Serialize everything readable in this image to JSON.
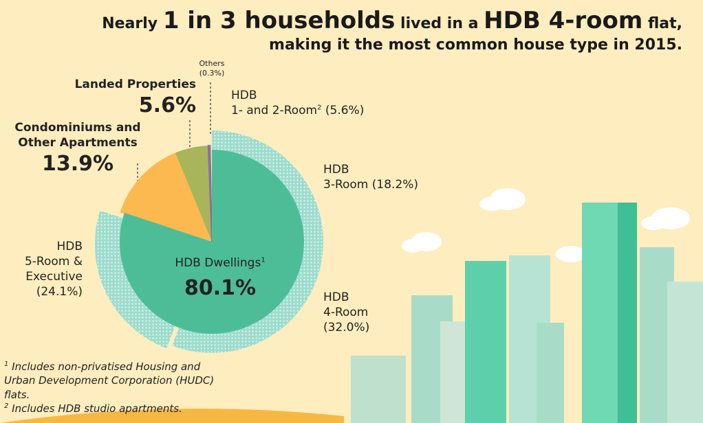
{
  "chart_data": {
    "type": "pie",
    "title_parts": [
      "Nearly",
      "1 in 3 households",
      "lived in a",
      "HDB 4-room",
      "flat,"
    ],
    "subtitle": "making it the most common house type in 2015.",
    "categories": [
      "HDB\n1- and 2-Room",
      "HDB\n3-Room",
      "HDB\n4-Room",
      "HDB\n5-Room &\nExecutive",
      "Condominiums and\nOther Apartments",
      "Landed Properties",
      "Others"
    ],
    "note_refs": [
      "2",
      null,
      null,
      null,
      null,
      null,
      null
    ],
    "values": [
      5.6,
      18.2,
      32.0,
      24.1,
      13.9,
      5.6,
      0.3
    ],
    "value_labels": [
      "(5.6%)",
      "(18.2%)",
      "(32.0%)",
      "(24.1%)",
      "13.9%",
      "5.6%",
      "(0.3%)"
    ],
    "colors": [
      "#9ddccd",
      "#9ddccd",
      "#9ddccd",
      "#9ddccd",
      "#fbb94f",
      "#a8b55b",
      "#8e6f9e"
    ],
    "group": {
      "name": "HDB Dwellings",
      "note_ref": "1",
      "value": 80.1,
      "value_label": "80.1%",
      "color": "#4dbd98"
    },
    "footnotes": [
      {
        "marker": "1",
        "text": "Includes non-privatised Housing and Urban Development Corporation (HUDC) flats."
      },
      {
        "marker": "2",
        "text": "Includes HDB studio apartments."
      }
    ]
  }
}
